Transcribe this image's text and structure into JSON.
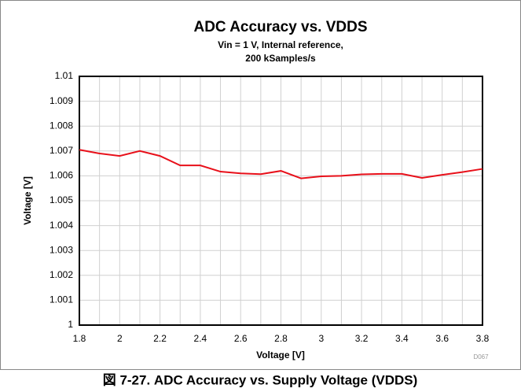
{
  "chart_data": {
    "type": "line",
    "title": "ADC Accuracy vs. VDDS",
    "subtitle": [
      "Vin = 1 V, Internal reference,",
      "200 kSamples/s"
    ],
    "x_label": "Voltage [V]",
    "y_label": "Voltage [V]",
    "code": "D067",
    "caption": "図 7-27. ADC Accuracy vs. Supply Voltage (VDDS)",
    "x": [
      1.8,
      1.9,
      2.0,
      2.1,
      2.2,
      2.3,
      2.4,
      2.5,
      2.6,
      2.7,
      2.8,
      2.9,
      3.0,
      3.1,
      3.2,
      3.3,
      3.4,
      3.5,
      3.6,
      3.7,
      3.8
    ],
    "values": [
      1.00705,
      1.0069,
      1.0068,
      1.007,
      1.0068,
      1.00642,
      1.00642,
      1.00617,
      1.0061,
      1.00607,
      1.0062,
      1.0059,
      1.00598,
      1.006,
      1.00606,
      1.00608,
      1.00608,
      1.00592,
      1.00604,
      1.00615,
      1.00628
    ],
    "color": "#e8101a",
    "xlim": [
      1.8,
      3.8
    ],
    "xticks": [
      1.8,
      2,
      2.2,
      2.4,
      2.6,
      2.8,
      3,
      3.2,
      3.4,
      3.6,
      3.8
    ],
    "xminor_ticks": [
      1.9,
      2.1,
      2.3,
      2.5,
      2.7,
      2.9,
      3.1,
      3.3,
      3.5,
      3.7
    ],
    "ylim": [
      1,
      1.01
    ],
    "yticks": [
      1,
      1.001,
      1.002,
      1.003,
      1.004,
      1.005,
      1.006,
      1.007,
      1.008,
      1.009,
      1.01
    ],
    "grid": true
  }
}
